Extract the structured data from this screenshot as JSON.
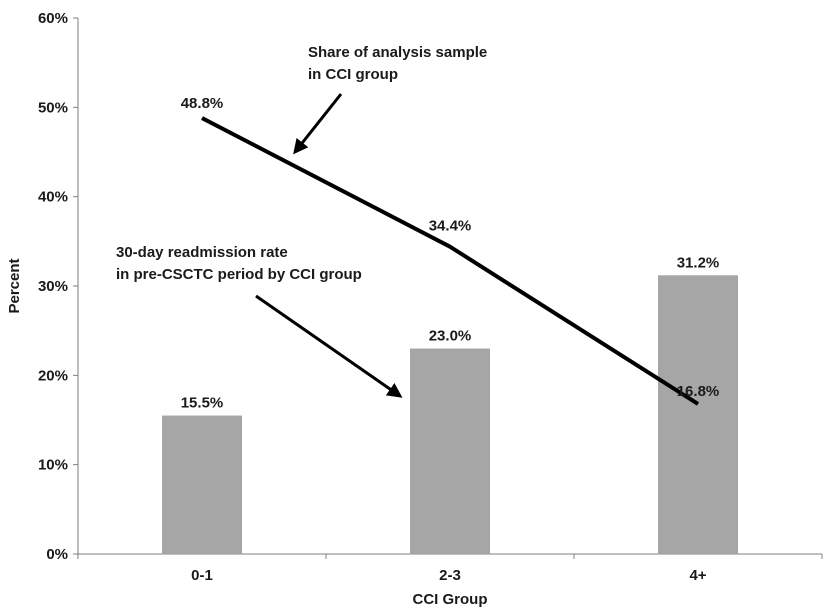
{
  "chart_data": {
    "type": "bar",
    "title": "",
    "xlabel": "CCI Group",
    "ylabel": "Percent",
    "categories": [
      "0-1",
      "2-3",
      "4+"
    ],
    "ylim": [
      0,
      60
    ],
    "y_ticks": [
      0,
      10,
      20,
      30,
      40,
      50,
      60
    ],
    "y_tick_labels": [
      "0%",
      "10%",
      "20%",
      "30%",
      "40%",
      "50%",
      "60%"
    ],
    "grid": false,
    "legend": "none",
    "series": [
      {
        "type": "bar",
        "values": [
          15.5,
          23.0,
          31.2
        ],
        "labels": [
          "15.5%",
          "23.0%",
          "31.2%"
        ],
        "color": "#a6a6a6"
      },
      {
        "type": "line",
        "values": [
          48.8,
          34.4,
          16.8
        ],
        "labels": [
          "48.8%",
          "34.4%",
          "16.8%"
        ],
        "color": "#000000"
      }
    ],
    "annotations": [
      {
        "lines": [
          "Share of analysis sample",
          "in CCI group"
        ],
        "target_series": 1
      },
      {
        "lines": [
          "30-day readmission rate",
          "in pre-CSCTC period by CCI group"
        ],
        "target_series": 0
      }
    ]
  }
}
